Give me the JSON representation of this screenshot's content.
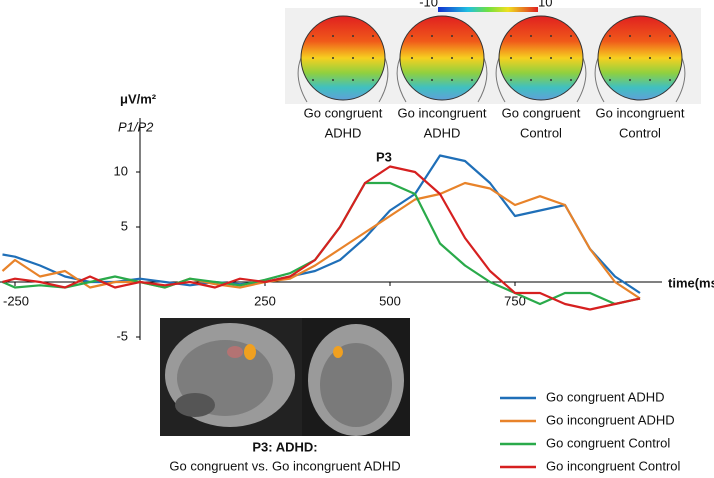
{
  "chart_data": {
    "type": "line",
    "x_label": "time(ms)",
    "y_label": "μV/m²",
    "annotations": [
      "P1/P2",
      "P3"
    ],
    "x": [
      -275,
      -250,
      -200,
      -150,
      -100,
      -50,
      0,
      50,
      100,
      150,
      200,
      250,
      300,
      350,
      400,
      450,
      500,
      550,
      600,
      650,
      700,
      750,
      800,
      850,
      900,
      950,
      1000
    ],
    "series": [
      {
        "name": "Go congruent ADHD",
        "color": "#1f6fb8",
        "values": [
          2.5,
          2.3,
          1.5,
          0.5,
          0,
          0,
          0.3,
          0,
          -0.3,
          0,
          -0.2,
          0,
          0.5,
          1,
          2,
          4,
          6.5,
          8,
          11.5,
          11,
          9,
          6,
          6.5,
          7,
          3,
          0.5,
          -1
        ]
      },
      {
        "name": "Go incongruent ADHD",
        "color": "#e8832a",
        "values": [
          1,
          2,
          0.5,
          1,
          -0.5,
          0,
          0,
          -0.5,
          0.3,
          -0.2,
          -0.5,
          0,
          0.3,
          1.5,
          3,
          4.5,
          6,
          7.5,
          8,
          9,
          8.5,
          7,
          7.8,
          7,
          3,
          0,
          -1.5
        ]
      },
      {
        "name": "Go congruent Control",
        "color": "#2aaa4a",
        "values": [
          0,
          -0.5,
          -0.3,
          -0.5,
          0,
          0.5,
          0,
          -0.5,
          0.3,
          0,
          -0.3,
          0.2,
          0.8,
          2,
          5,
          9,
          9,
          8,
          3.5,
          1.5,
          0,
          -1,
          -2,
          -1,
          -1,
          -2,
          -1.5
        ]
      },
      {
        "name": "Go incongruent Control",
        "color": "#d62020",
        "values": [
          0,
          0.3,
          0,
          -0.5,
          0.5,
          -0.5,
          0,
          -0.3,
          0,
          -0.5,
          0.3,
          0,
          0.5,
          2,
          5,
          9,
          10.5,
          10,
          8,
          4,
          1,
          -1,
          -1,
          -2,
          -2.5,
          -2,
          -1.5
        ]
      }
    ],
    "xlim": [
      -280,
      1040
    ],
    "ylim": [
      -5,
      15
    ],
    "xticks": [
      -250,
      250,
      500,
      750
    ],
    "yticks": [
      -5,
      5,
      10
    ],
    "topomaps": [
      {
        "label": [
          "Go congruent",
          "ADHD"
        ]
      },
      {
        "label": [
          "Go incongruent",
          "ADHD"
        ]
      },
      {
        "label": [
          "Go congruent",
          "Control"
        ]
      },
      {
        "label": [
          "Go incongruent",
          "Control"
        ]
      }
    ],
    "colorbar_ticks": [
      -10,
      10
    ],
    "inset": {
      "title": "P3: ADHD:",
      "subtitle": "Go congruent vs. Go incongruent ADHD"
    }
  }
}
